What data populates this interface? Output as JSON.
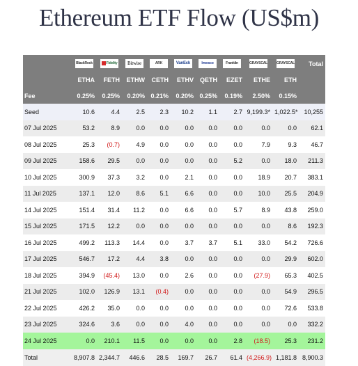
{
  "title": "Ethereum ETF Flow (US$m)",
  "issuers": [
    {
      "name": "BlackRock",
      "icon": "blackrock-logo"
    },
    {
      "name": "Fidelity",
      "icon": "fidelity-logo"
    },
    {
      "name": "Bitwise",
      "icon": "bitwise-logo"
    },
    {
      "name": "ARK",
      "icon": "ark-logo"
    },
    {
      "name": "VanEck",
      "icon": "vaneck-logo"
    },
    {
      "name": "Invesco",
      "icon": "invesco-logo"
    },
    {
      "name": "Franklin",
      "icon": "franklin-logo"
    },
    {
      "name": "GRAYSCALE",
      "icon": "grayscale-logo"
    },
    {
      "name": "GRAYSCALE",
      "icon": "grayscale-logo"
    }
  ],
  "total_header": "Total",
  "tickers": [
    "ETHA",
    "FETH",
    "ETHW",
    "CETH",
    "ETHV",
    "QETH",
    "EZET",
    "ETHE",
    "ETH"
  ],
  "fee_label": "Fee",
  "fees": [
    "0.25%",
    "0.25%",
    "0.20%",
    "0.21%",
    "0.20%",
    "0.25%",
    "0.19%",
    "2.50%",
    "0.15%"
  ],
  "rows": [
    {
      "label": "Seed",
      "values": [
        "10.6",
        "4.4",
        "2.5",
        "2.3",
        "10.2",
        "1.1",
        "2.7",
        "9,199.3*",
        "1,022.5*"
      ],
      "total": "10,255",
      "style": "seed"
    },
    {
      "label": "07 Jul 2025",
      "values": [
        "53.2",
        "8.9",
        "0.0",
        "0.0",
        "0.0",
        "0.0",
        "0.0",
        "0.0",
        "0.0"
      ],
      "total": "62.1"
    },
    {
      "label": "08 Jul 2025",
      "values": [
        "25.3",
        "(0.7)",
        "4.9",
        "0.0",
        "0.0",
        "0.0",
        "0.0",
        "7.9",
        "9.3"
      ],
      "total": "46.7"
    },
    {
      "label": "09 Jul 2025",
      "values": [
        "158.6",
        "29.5",
        "0.0",
        "0.0",
        "0.0",
        "0.0",
        "5.2",
        "0.0",
        "18.0"
      ],
      "total": "211.3"
    },
    {
      "label": "10 Jul 2025",
      "values": [
        "300.9",
        "37.3",
        "3.2",
        "0.0",
        "2.1",
        "0.0",
        "0.0",
        "18.9",
        "20.7"
      ],
      "total": "383.1"
    },
    {
      "label": "11 Jul 2025",
      "values": [
        "137.1",
        "12.0",
        "8.6",
        "5.1",
        "6.6",
        "0.0",
        "0.0",
        "10.0",
        "25.5"
      ],
      "total": "204.9"
    },
    {
      "label": "14 Jul 2025",
      "values": [
        "151.4",
        "31.4",
        "11.2",
        "0.0",
        "6.6",
        "0.0",
        "5.7",
        "8.9",
        "43.8"
      ],
      "total": "259.0"
    },
    {
      "label": "15 Jul 2025",
      "values": [
        "171.5",
        "12.2",
        "0.0",
        "0.0",
        "0.0",
        "0.0",
        "0.0",
        "0.0",
        "8.6"
      ],
      "total": "192.3"
    },
    {
      "label": "16 Jul 2025",
      "values": [
        "499.2",
        "113.3",
        "14.4",
        "0.0",
        "3.7",
        "3.7",
        "5.1",
        "33.0",
        "54.2"
      ],
      "total": "726.6"
    },
    {
      "label": "17 Jul 2025",
      "values": [
        "546.7",
        "17.2",
        "4.4",
        "3.8",
        "0.0",
        "0.0",
        "0.0",
        "0.0",
        "29.9"
      ],
      "total": "602.0"
    },
    {
      "label": "18 Jul 2025",
      "values": [
        "394.9",
        "(45.4)",
        "13.0",
        "0.0",
        "2.6",
        "0.0",
        "0.0",
        "(27.9)",
        "65.3"
      ],
      "total": "402.5"
    },
    {
      "label": "21 Jul 2025",
      "values": [
        "102.0",
        "126.9",
        "13.1",
        "(0.4)",
        "0.0",
        "0.0",
        "0.0",
        "0.0",
        "54.9"
      ],
      "total": "296.5"
    },
    {
      "label": "22 Jul 2025",
      "values": [
        "426.2",
        "35.0",
        "0.0",
        "0.0",
        "0.0",
        "0.0",
        "0.0",
        "0.0",
        "72.6"
      ],
      "total": "533.8"
    },
    {
      "label": "23 Jul 2025",
      "values": [
        "324.6",
        "3.6",
        "0.0",
        "0.0",
        "4.0",
        "0.0",
        "0.0",
        "0.0",
        "0.0"
      ],
      "total": "332.2"
    },
    {
      "label": "24 Jul 2025",
      "values": [
        "0.0",
        "210.1",
        "11.5",
        "0.0",
        "0.0",
        "0.0",
        "2.8",
        "(18.5)",
        "25.3"
      ],
      "total": "231.2",
      "style": "highlight"
    },
    {
      "label": "Total",
      "values": [
        "8,907.8",
        "2,344.7",
        "446.6",
        "28.5",
        "169.7",
        "26.7",
        "61.4",
        "(4,266.9)",
        "1,181.8"
      ],
      "total": "8,900.3",
      "style": "total"
    }
  ],
  "colors": {
    "header_bg": "#7e7e7e",
    "highlight_row": "#a4f59b",
    "negative_text": "#d11a1a",
    "title_text": "#2f3347"
  }
}
